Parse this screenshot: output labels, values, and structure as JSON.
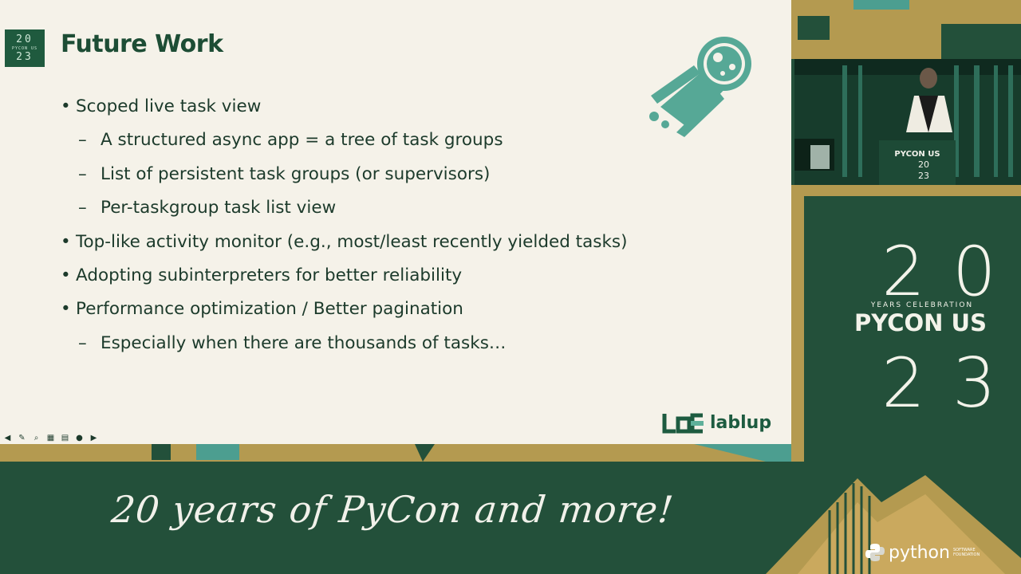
{
  "slide": {
    "logo": {
      "top": "20",
      "middle": "PYCON US",
      "bottom": "23"
    },
    "title": "Future Work",
    "bullets": [
      {
        "level": 1,
        "text": "Scoped live task view"
      },
      {
        "level": 2,
        "text": "A structured async app = a tree of task groups"
      },
      {
        "level": 2,
        "text": "List of persistent task groups (or supervisors)"
      },
      {
        "level": 2,
        "text": "Per-taskgroup task list view"
      },
      {
        "level": 1,
        "text": "Top-like activity monitor (e.g., most/least recently yielded tasks)"
      },
      {
        "level": 1,
        "text": "Adopting subinterpreters for better reliability"
      },
      {
        "level": 1,
        "text": "Performance optimization / Better pagination"
      },
      {
        "level": 2,
        "text": "Especially when there are thousands of tasks…"
      }
    ],
    "bullet_mark": "•",
    "dash_mark": "–",
    "brand": "lablup",
    "icons": [
      "comet-icon",
      "lablup-logo-icon"
    ]
  },
  "nav_controls": [
    {
      "name": "prev-slide-icon",
      "glyph": "◀"
    },
    {
      "name": "pen-icon",
      "glyph": "✎"
    },
    {
      "name": "zoom-icon",
      "glyph": "⌕"
    },
    {
      "name": "slides-grid-icon",
      "glyph": "▦"
    },
    {
      "name": "subtitle-icon",
      "glyph": "▤"
    },
    {
      "name": "more-icon",
      "glyph": "●"
    },
    {
      "name": "next-slide-icon",
      "glyph": "▶"
    }
  ],
  "camera": {
    "podium_label": "PYCON US",
    "podium_year_top": "20",
    "podium_year_bottom": "23"
  },
  "event": {
    "year_top": "20",
    "subtitle": "YEARS CELEBRATION",
    "name": "PYCON US",
    "year_bottom": "23"
  },
  "banner": {
    "tagline": "20 years of PyCon and more!",
    "python_logo": "python",
    "python_sub": "SOFTWARE FOUNDATION"
  },
  "colors": {
    "slide_bg": "#f5f2e9",
    "title": "#1d4d35",
    "dark_green": "#23503a",
    "gold": "#b49a50",
    "teal": "#4c9e90",
    "cream": "#f3f3ea"
  }
}
